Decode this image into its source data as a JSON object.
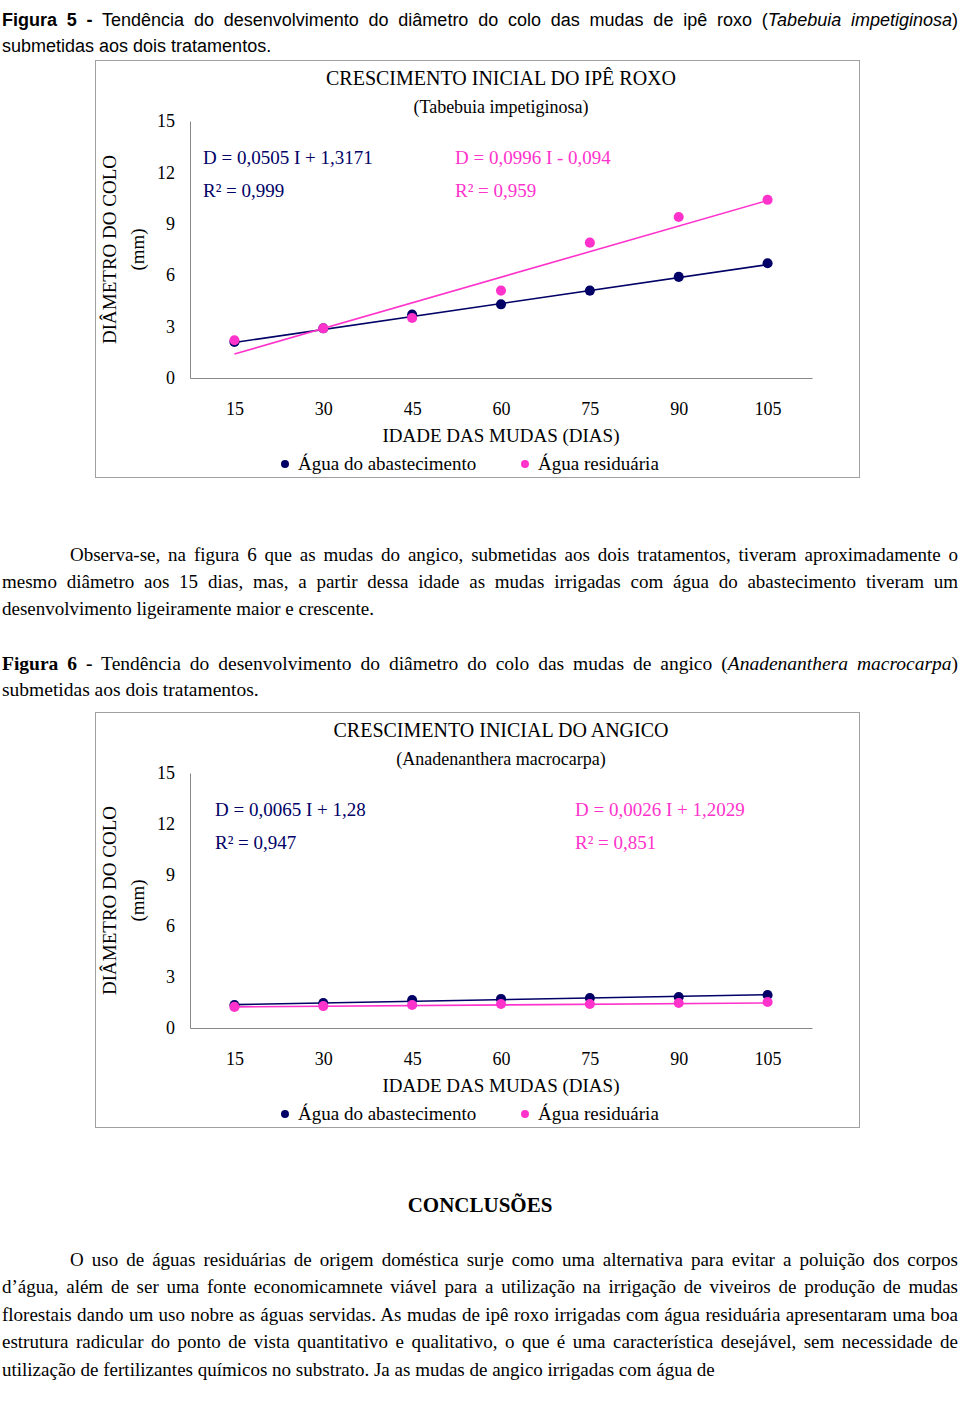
{
  "chart_data": [
    {
      "type": "scatter",
      "title": "CRESCIMENTO INICIAL DO IPÊ ROXO",
      "subtitle": "(Tabebuia impetiginosa)",
      "x_label": "IDADE DAS MUDAS (DIAS)",
      "y_label": [
        "DIÂMETRO DO COLO",
        "(mm)"
      ],
      "x": [
        15,
        30,
        45,
        60,
        75,
        90,
        105
      ],
      "xlim": [
        7.5,
        112.5
      ],
      "xticks": [
        15,
        30,
        45,
        60,
        75,
        90,
        105
      ],
      "ylim": [
        0,
        15
      ],
      "yticks": [
        0,
        3,
        6,
        9,
        12,
        15
      ],
      "legend": "bottom",
      "series": [
        {
          "name": "Água do abastecimento",
          "color": "#000066",
          "marker": "circle",
          "values": [
            2.1,
            2.9,
            3.7,
            4.3,
            5.1,
            5.9,
            6.7
          ],
          "trendline": {
            "slope": 0.0505,
            "intercept": 1.3171
          },
          "equation": "D = 0,0505 I + 1,3171",
          "r2": "R² = 0,999"
        },
        {
          "name": "Água residuária",
          "color": "#ff33cc",
          "marker": "circle",
          "values": [
            2.2,
            2.9,
            3.5,
            5.1,
            7.9,
            9.4,
            10.4
          ],
          "trendline": {
            "slope": 0.0996,
            "intercept": -0.094
          },
          "equation": "D = 0,0996 I - 0,094",
          "r2": "R² = 0,959"
        }
      ]
    },
    {
      "type": "scatter",
      "title": "CRESCIMENTO INICIAL DO ANGICO",
      "subtitle": "(Anadenanthera macrocarpa)",
      "x_label": "IDADE DAS MUDAS (DIAS)",
      "y_label": [
        "DIÂMETRO DO COLO",
        "(mm)"
      ],
      "x": [
        15,
        30,
        45,
        60,
        75,
        90,
        105
      ],
      "xlim": [
        7.5,
        112.5
      ],
      "xticks": [
        15,
        30,
        45,
        60,
        75,
        90,
        105
      ],
      "ylim": [
        0,
        15
      ],
      "yticks": [
        0,
        3,
        6,
        9,
        12,
        15
      ],
      "legend": "bottom",
      "series": [
        {
          "name": "Água do abastecimento",
          "color": "#000066",
          "marker": "circle",
          "values": [
            1.35,
            1.47,
            1.65,
            1.71,
            1.76,
            1.82,
            1.94
          ],
          "trendline": {
            "slope": 0.0065,
            "intercept": 1.28
          },
          "equation": "D = 0,0065 I + 1,28",
          "r2": "R² = 0,947"
        },
        {
          "name": "Água residuária",
          "color": "#ff33cc",
          "marker": "circle",
          "values": [
            1.24,
            1.29,
            1.35,
            1.41,
            1.41,
            1.47,
            1.53
          ],
          "trendline": {
            "slope": 0.0026,
            "intercept": 1.2029
          },
          "equation": "D = 0,0026 I + 1,2029",
          "r2": "R² = 0,851"
        }
      ]
    }
  ],
  "text": {
    "caption5": {
      "label": "Figura 5 -",
      "before": "Tendência do desenvolvimento do diâmetro do colo das mudas de ipê roxo (",
      "species": "Tabebuia impetiginosa",
      "after": ") submetidas aos dois tratamentos."
    },
    "paragraph": "Observa-se, na figura 6 que as mudas do angico, submetidas aos dois tratamentos, tiveram aproximadamente o mesmo diâmetro aos 15 dias, mas, a partir dessa idade as mudas irrigadas com água do abastecimento tiveram um desenvolvimento ligeiramente maior e crescente.",
    "caption6": {
      "label": "Figura 6 -",
      "before": "Tendência do desenvolvimento do diâmetro do colo das mudas de angico (",
      "species": "Anadenanthera macrocarpa",
      "after": ") submetidas aos dois tratamentos."
    },
    "conclusions_title": "CONCLUSÕES",
    "conclusions": "O uso de águas residuárias de origem doméstica surje como uma alternativa para evitar a poluição dos corpos d’água, além de ser uma fonte economicamnete viável para a utilização na irrigação de viveiros de produção de mudas florestais dando um uso nobre as águas servidas. As mudas de ipê roxo irrigadas com água residuária apresentaram uma boa estrutura radicular do ponto de vista quantitativo e qualitativo, o que é uma característica desejável, sem necessidade de utilização de fertilizantes químicos no substrato. Ja as mudas de angico irrigadas com água de"
  }
}
